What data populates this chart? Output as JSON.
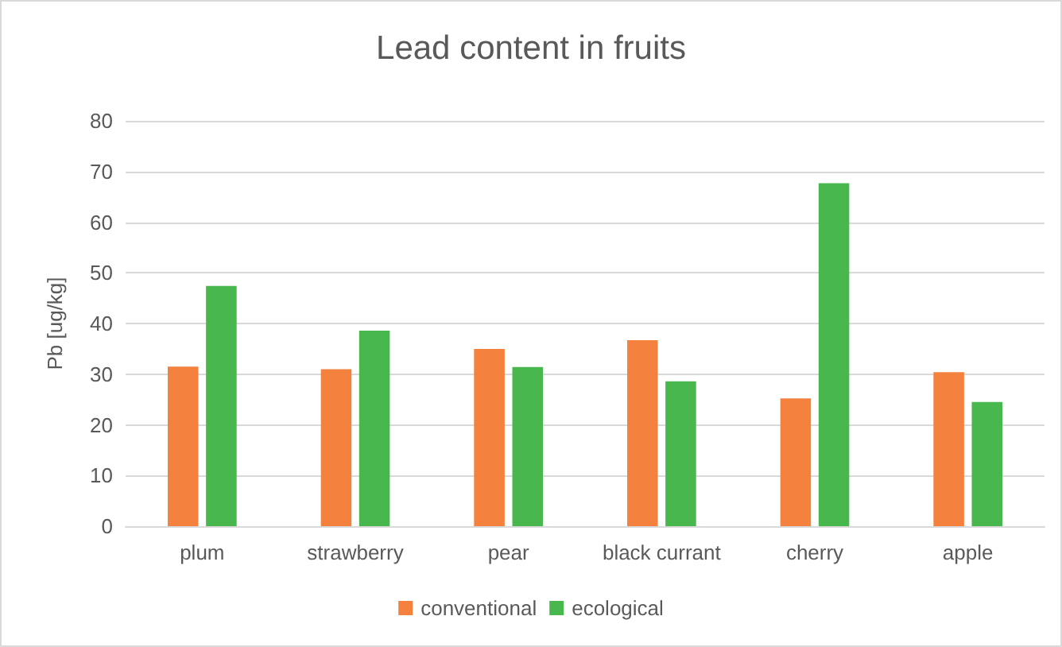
{
  "chart_data": {
    "type": "bar",
    "title": "Lead content in fruits",
    "ylabel": "Pb [ug/kg]",
    "categories": [
      "plum",
      "strawberry",
      "pear",
      "black currant",
      "cherry",
      "apple"
    ],
    "series": [
      {
        "name": "conventional",
        "color": "#f4813d",
        "values": [
          31.5,
          31.0,
          35.0,
          36.7,
          25.2,
          30.4
        ]
      },
      {
        "name": "ecological",
        "color": "#48b74e",
        "values": [
          47.4,
          38.6,
          31.4,
          28.6,
          67.7,
          24.5
        ]
      }
    ],
    "ylim": [
      0,
      80
    ],
    "yticks": [
      0,
      10,
      20,
      30,
      40,
      50,
      60,
      70,
      80
    ],
    "grid": "y",
    "legend": "bottom"
  }
}
